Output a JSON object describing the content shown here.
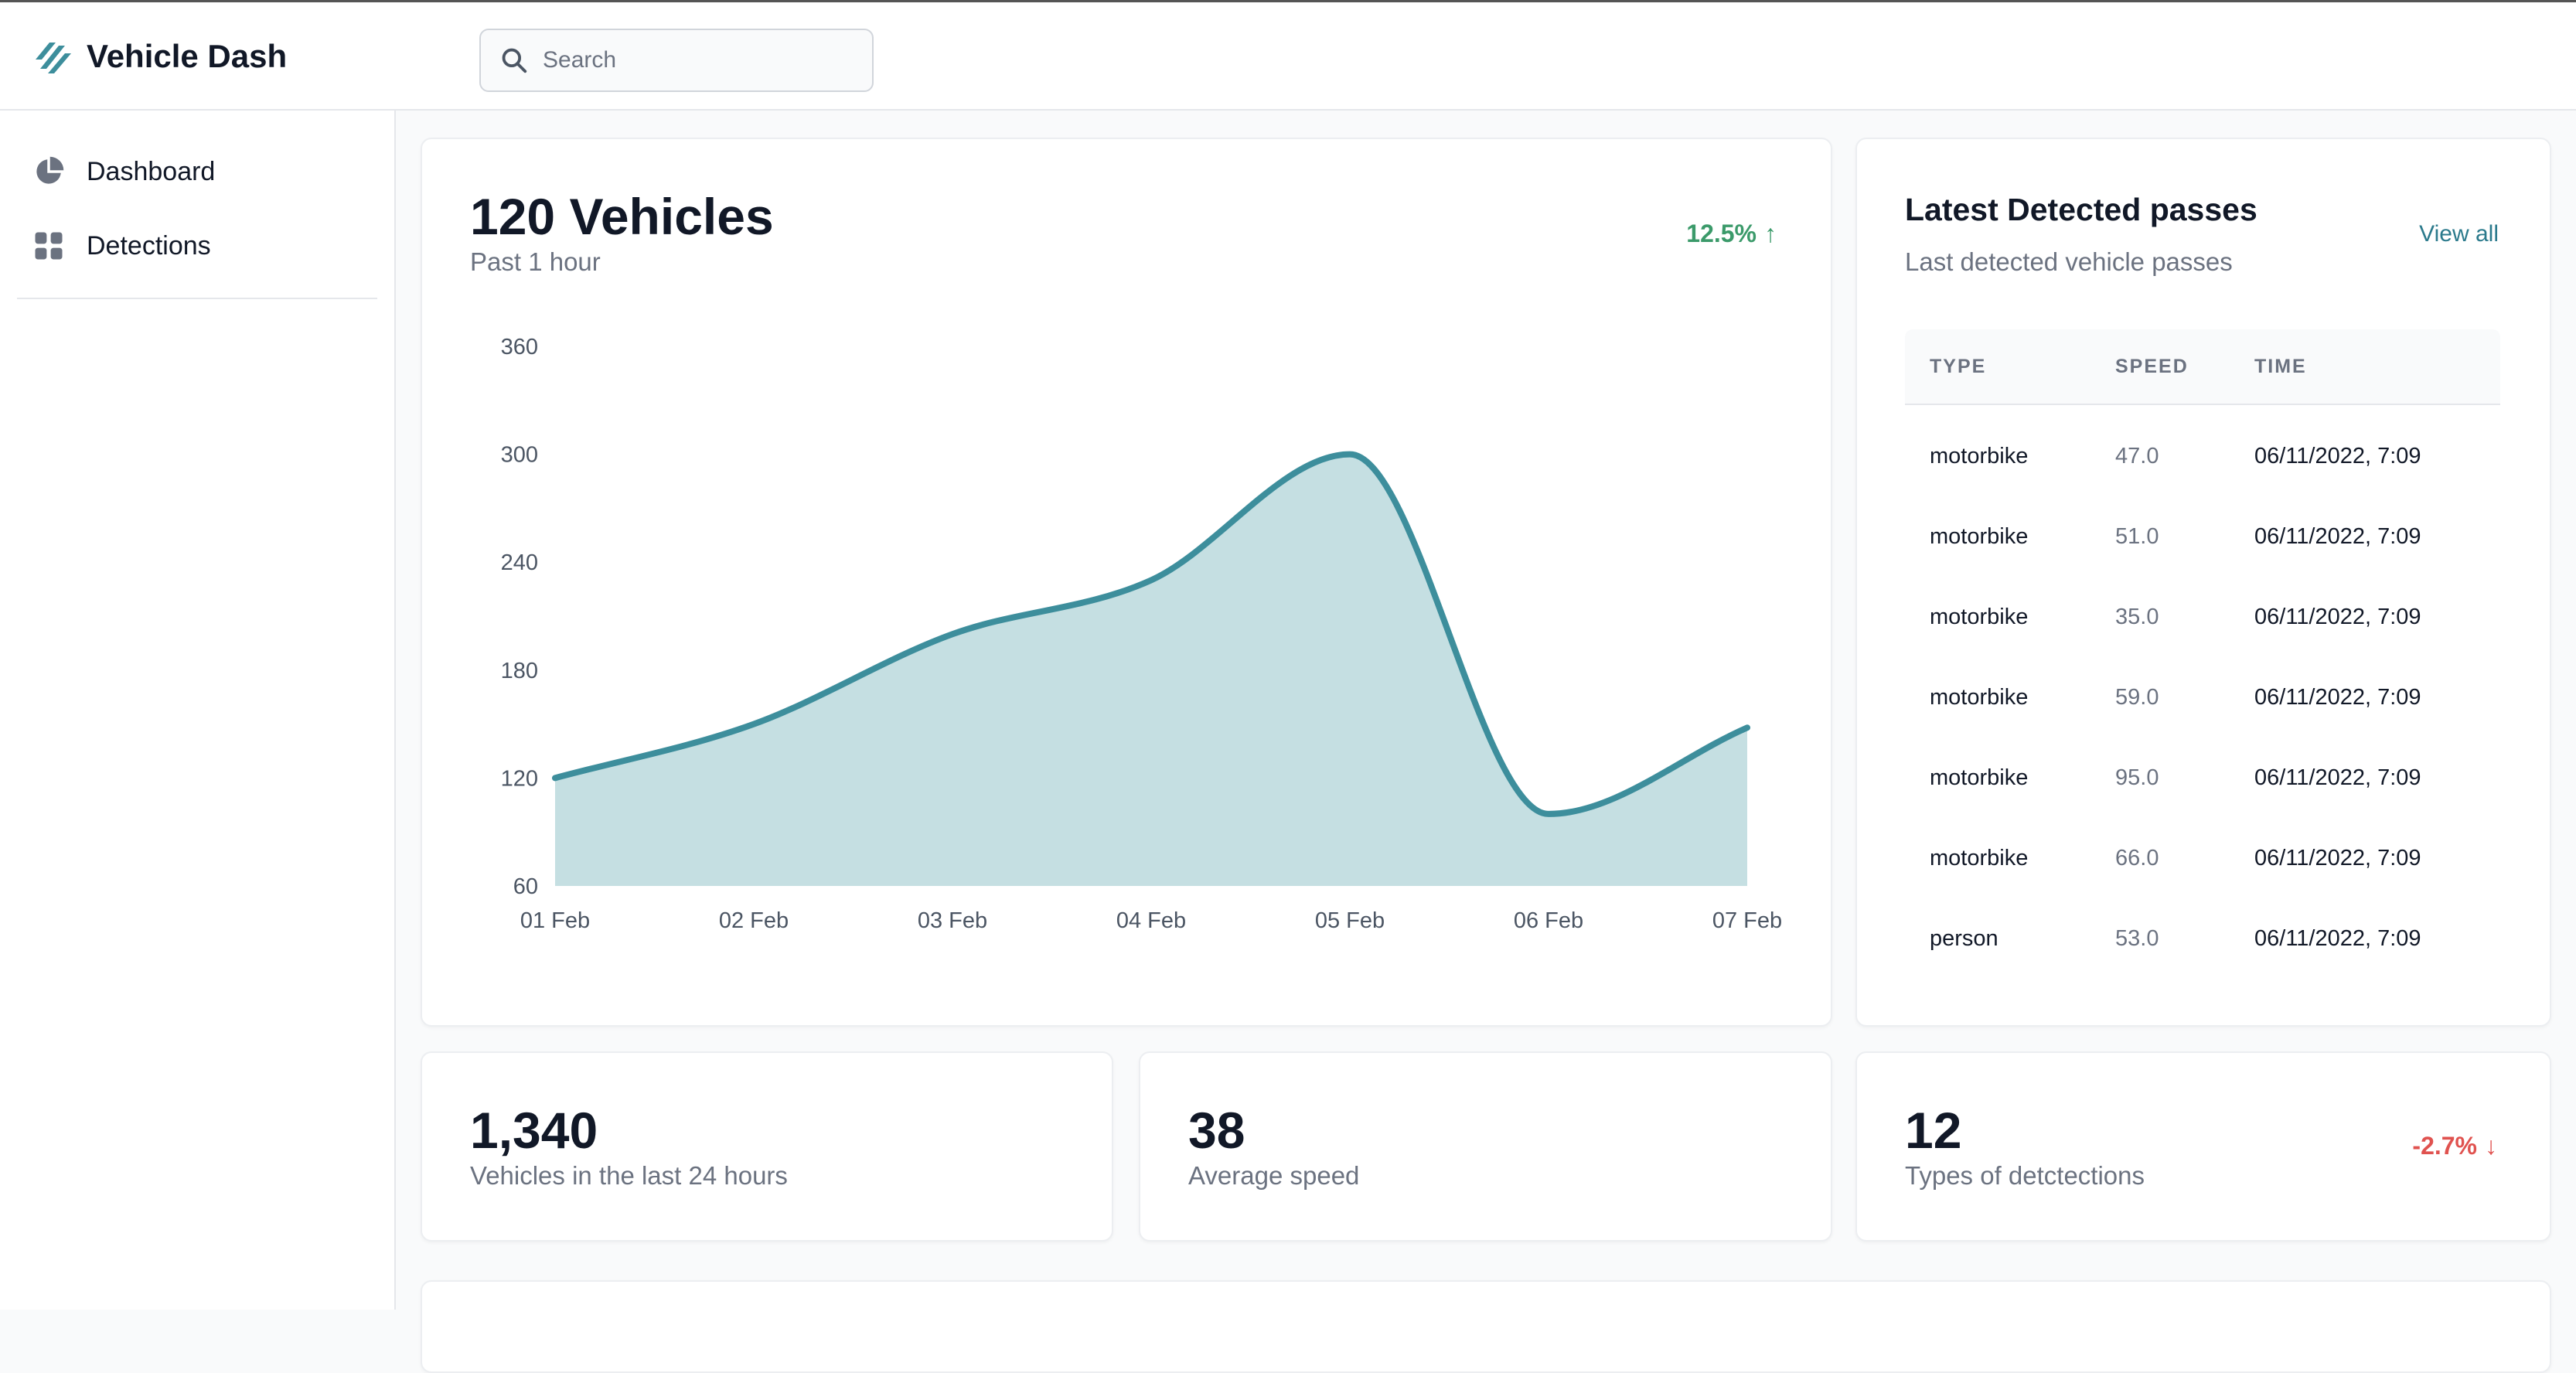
{
  "app": {
    "name": "Vehicle Dash",
    "search_placeholder": "Search"
  },
  "colors": {
    "accent": "#3d8e9c",
    "area_fill": "#c5dfe2",
    "trend_up": "#3b9a6a",
    "trend_down": "#e0524f"
  },
  "sidebar": {
    "items": [
      {
        "label": "Dashboard",
        "icon": "pie-chart-icon"
      },
      {
        "label": "Detections",
        "icon": "grid-icon"
      }
    ]
  },
  "main_card": {
    "title": "120 Vehicles",
    "subtitle": "Past 1 hour",
    "trend": "12.5%",
    "trend_arrow": "↑"
  },
  "chart_data": {
    "type": "area",
    "categories": [
      "01 Feb",
      "02 Feb",
      "03 Feb",
      "04 Feb",
      "05 Feb",
      "06 Feb",
      "07 Feb"
    ],
    "series": [
      {
        "values": [
          120,
          150,
          200,
          230,
          300,
          100,
          148
        ]
      }
    ],
    "title": "",
    "xlabel": "",
    "ylabel": "",
    "ylim": [
      60,
      360
    ],
    "yticks": [
      60,
      120,
      180,
      240,
      300,
      360
    ],
    "grid": false
  },
  "passes": {
    "title": "Latest Detected passes",
    "subtitle": "Last detected vehicle passes",
    "view_all": "View all",
    "columns": [
      "TYPE",
      "SPEED",
      "TIME"
    ],
    "rows": [
      {
        "type": "motorbike",
        "speed": "47.0",
        "time": "06/11/2022, 7:09"
      },
      {
        "type": "motorbike",
        "speed": "51.0",
        "time": "06/11/2022, 7:09"
      },
      {
        "type": "motorbike",
        "speed": "35.0",
        "time": "06/11/2022, 7:09"
      },
      {
        "type": "motorbike",
        "speed": "59.0",
        "time": "06/11/2022, 7:09"
      },
      {
        "type": "motorbike",
        "speed": "95.0",
        "time": "06/11/2022, 7:09"
      },
      {
        "type": "motorbike",
        "speed": "66.0",
        "time": "06/11/2022, 7:09"
      },
      {
        "type": "person",
        "speed": "53.0",
        "time": "06/11/2022, 7:09"
      }
    ]
  },
  "stats": [
    {
      "value": "1,340",
      "label": "Vehicles in the last 24 hours"
    },
    {
      "value": "38",
      "label": "Average speed"
    },
    {
      "value": "12",
      "label": "Types of detctections",
      "trend": "-2.7%",
      "trend_arrow": "↓"
    }
  ]
}
